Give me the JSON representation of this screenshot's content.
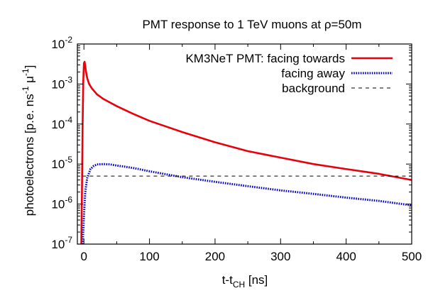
{
  "chart_data": {
    "type": "line",
    "title": "PMT response to 1 TeV muons at ρ=50m",
    "xlabel": {
      "base": "t-t",
      "sub": "CH",
      "unit": " [ns]"
    },
    "ylabel": {
      "prefix": "photoelectrons [p.e. ns",
      "sup1": "-1",
      "mid": " μ",
      "sup2": "-1",
      "suffix": "]"
    },
    "xlim": [
      -10,
      500
    ],
    "ylim": [
      1e-07,
      0.01
    ],
    "yscale": "log",
    "x_ticks": [
      0,
      100,
      200,
      300,
      400,
      500
    ],
    "x_tick_labels": [
      "0",
      "100",
      "200",
      "300",
      "400",
      "500"
    ],
    "y_ticks": [
      -7,
      -6,
      -5,
      -4,
      -3,
      -2
    ],
    "y_tick_labels": [
      "-7",
      "-6",
      "-5",
      "-4",
      "-3",
      "-2"
    ],
    "y_tick_base": "10",
    "legend_position": "top-right",
    "series": [
      {
        "name": "KM3NeT PMT: facing towards",
        "color": "#e8000b",
        "style": "solid",
        "x": [
          -4,
          -3,
          -2,
          -1,
          0,
          1,
          2,
          3,
          5,
          8,
          12,
          20,
          30,
          50,
          75,
          100,
          150,
          200,
          250,
          300,
          350,
          400,
          450,
          500
        ],
        "y": [
          1e-07,
          2e-06,
          0.0001,
          0.0012,
          0.0033,
          0.0036,
          0.0029,
          0.0021,
          0.0014,
          0.001,
          0.00078,
          0.00055,
          0.00042,
          0.00028,
          0.00018,
          0.00012,
          6.3e-05,
          3.5e-05,
          2.1e-05,
          1.45e-05,
          1e-05,
          7.5e-06,
          5.7e-06,
          4e-06
        ]
      },
      {
        "name": "facing away",
        "color": "#0000d0",
        "style": "dotted",
        "x": [
          -2,
          0,
          2,
          5,
          10,
          15,
          20,
          30,
          40,
          50,
          75,
          100,
          150,
          200,
          250,
          300,
          350,
          400,
          450,
          500
        ],
        "y": [
          1e-07,
          5e-07,
          2e-06,
          4.5e-06,
          7.5e-06,
          9e-06,
          9.8e-06,
          1e-05,
          9.8e-06,
          9.2e-06,
          8e-06,
          6.6e-06,
          4.7e-06,
          3.6e-06,
          2.8e-06,
          2.2e-06,
          1.8e-06,
          1.45e-06,
          1.2e-06,
          9.3e-07
        ]
      },
      {
        "name": "background",
        "color": "#000000",
        "style": "dashed",
        "x": [
          -2,
          500
        ],
        "y": [
          5e-06,
          5e-06
        ]
      }
    ]
  }
}
